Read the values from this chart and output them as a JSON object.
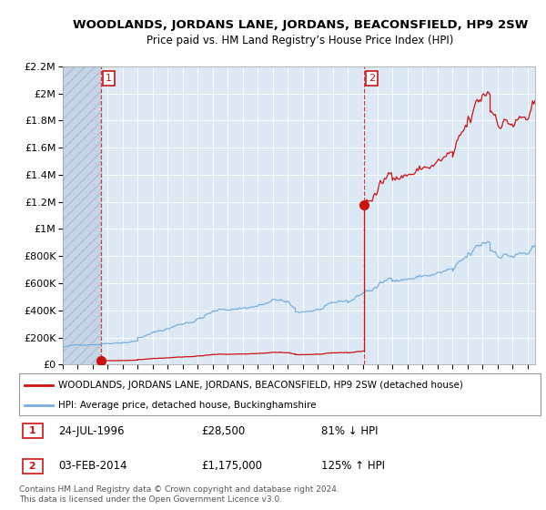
{
  "title": "WOODLANDS, JORDANS LANE, JORDANS, BEACONSFIELD, HP9 2SW",
  "subtitle": "Price paid vs. HM Land Registry’s House Price Index (HPI)",
  "legend_line1": "WOODLANDS, JORDANS LANE, JORDANS, BEACONSFIELD, HP9 2SW (detached house)",
  "legend_line2": "HPI: Average price, detached house, Buckinghamshire",
  "transaction1_date": "24-JUL-1996",
  "transaction1_price": "£28,500",
  "transaction1_hpi": "81% ↓ HPI",
  "transaction1_year": 1996.56,
  "transaction1_value": 28500,
  "transaction2_date": "03-FEB-2014",
  "transaction2_price": "£1,175,000",
  "transaction2_hpi": "125% ↑ HPI",
  "transaction2_year": 2014.09,
  "transaction2_value": 1175000,
  "ylim_max": 2200000,
  "xlim_start": 1994.0,
  "xlim_end": 2025.5,
  "hpi_color": "#7aaddc",
  "property_color": "#cc1111",
  "fig_bg": "#f5f5f5",
  "plot_bg": "#dce9f5",
  "hatch_bg": "#c8d8e8",
  "footer_text": "Contains HM Land Registry data © Crown copyright and database right 2024.\nThis data is licensed under the Open Government Licence v3.0."
}
